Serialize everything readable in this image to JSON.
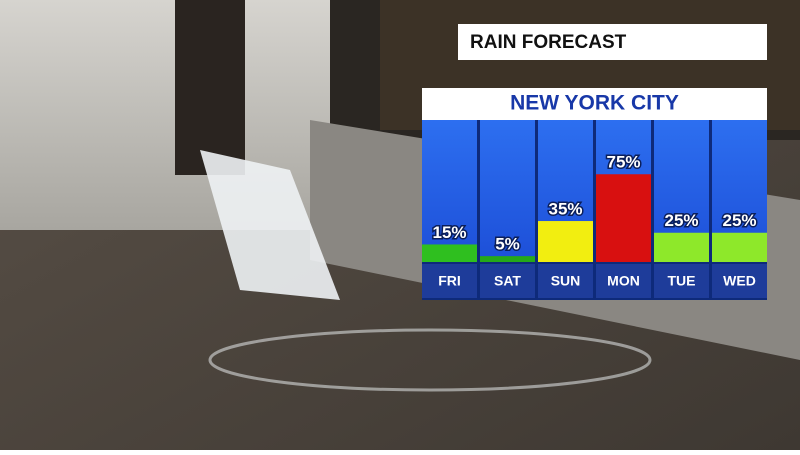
{
  "chart_data": {
    "type": "bar",
    "title": "RAIN FORECAST",
    "subtitle": "NEW YORK CITY",
    "categories": [
      "FRI",
      "SAT",
      "SUN",
      "MON",
      "TUE",
      "WED"
    ],
    "values": [
      15,
      5,
      35,
      75,
      25,
      25
    ],
    "value_labels": [
      "15%",
      "5%",
      "35%",
      "75%",
      "25%",
      "25%"
    ],
    "colors": [
      "#2fbf1f",
      "#25a81a",
      "#f2ee10",
      "#d81010",
      "#8ee82a",
      "#8ee82a"
    ],
    "ylim": [
      0,
      100
    ]
  }
}
